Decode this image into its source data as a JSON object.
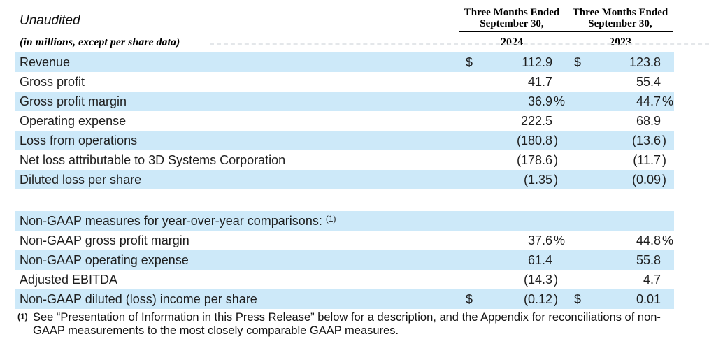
{
  "colors": {
    "stripe": "#cde9f9",
    "header_rule": "#000000",
    "text": "#1e1e1e"
  },
  "header": {
    "unaudited_label": "Unaudited",
    "units_label": "(in millions, except per share data)",
    "columns": [
      {
        "title_line1": "Three Months Ended",
        "title_line2": "September 30,",
        "year": "2024"
      },
      {
        "title_line1": "Three Months Ended",
        "title_line2": "September 30,",
        "year": "2023"
      }
    ]
  },
  "table": {
    "gaap_rows": [
      {
        "label": "Revenue",
        "d1": "$",
        "v1": "112.9",
        "d2": "$",
        "v2": "123.8",
        "shade": true
      },
      {
        "label": "Gross profit",
        "d1": "",
        "v1": "41.7",
        "d2": "",
        "v2": "55.4",
        "shade": false
      },
      {
        "label": "Gross profit margin",
        "d1": "",
        "v1": "36.9 %",
        "d2": "",
        "v2": "44.7 %",
        "shade": true
      },
      {
        "label": "Operating expense",
        "d1": "",
        "v1": "222.5",
        "d2": "",
        "v2": "68.9",
        "shade": false
      },
      {
        "label": "Loss from operations",
        "d1": "",
        "v1": "(180.8)",
        "d2": "",
        "v2": "(13.6)",
        "shade": true
      },
      {
        "label": "Net loss attributable to 3D Systems Corporation",
        "d1": "",
        "v1": "(178.6)",
        "d2": "",
        "v2": "(11.7)",
        "shade": false
      },
      {
        "label": "Diluted loss per share",
        "d1": "",
        "v1": "(1.35)",
        "d2": "",
        "v2": "(0.09)",
        "shade": true
      }
    ],
    "section_header": {
      "label": "Non-GAAP measures for year-over-year comparisons:",
      "footnote_ref": "(1)"
    },
    "nongaap_rows": [
      {
        "label": "Non-GAAP gross profit margin",
        "d1": "",
        "v1": "37.6 %",
        "d2": "",
        "v2": "44.8 %",
        "shade": false
      },
      {
        "label": "Non-GAAP operating expense",
        "d1": "",
        "v1": "61.4",
        "d2": "",
        "v2": "55.8",
        "shade": true
      },
      {
        "label": "Adjusted EBITDA",
        "d1": "",
        "v1": "(14.3)",
        "d2": "",
        "v2": "4.7",
        "shade": false
      },
      {
        "label": "Non-GAAP diluted (loss) income per share",
        "d1": "$",
        "v1": "(0.12)",
        "d2": "$",
        "v2": "0.01",
        "shade": true
      }
    ]
  },
  "footnote": {
    "ref": "(1)",
    "line1": "See “Presentation of Information in this Press Release” below for a description, and the Appendix for reconciliations of non-",
    "line2": "GAAP measurements to the most closely comparable GAAP measures."
  }
}
